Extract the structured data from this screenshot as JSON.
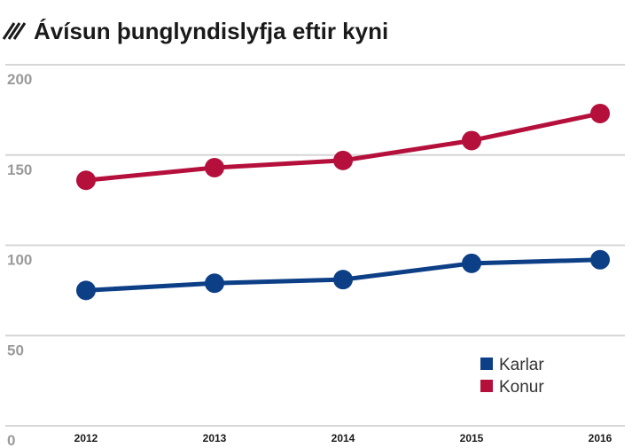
{
  "chart_data": {
    "type": "line",
    "title": "Ávísun þunglyndislyfja eftir kyni",
    "categories": [
      "2012",
      "2013",
      "2014",
      "2015",
      "2016"
    ],
    "series": [
      {
        "name": "Karlar",
        "color": "#0d3f87",
        "values": [
          75,
          79,
          81,
          90,
          92
        ]
      },
      {
        "name": "Konur",
        "color": "#b5103c",
        "values": [
          136,
          143,
          147,
          158,
          173
        ]
      }
    ],
    "ylim": [
      0,
      200
    ],
    "yticks": [
      "0",
      "50",
      "100",
      "150",
      "200"
    ],
    "xlabel": "",
    "ylabel": "",
    "grid": true,
    "legend_position": "bottom-right"
  }
}
